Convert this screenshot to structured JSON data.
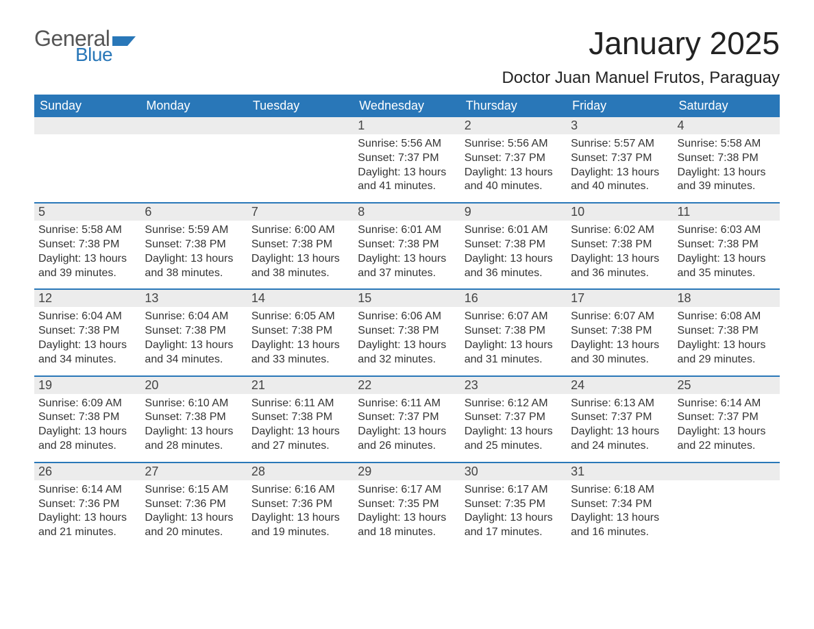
{
  "logo": {
    "general": "General",
    "blue": "Blue"
  },
  "title": "January 2025",
  "location": "Doctor Juan Manuel Frutos, Paraguay",
  "colors": {
    "header_bg": "#2977b8",
    "header_text": "#ffffff",
    "row_divider": "#2977b8",
    "daynum_bg": "#ececec",
    "page_bg": "#ffffff",
    "body_text": "#333333",
    "logo_general": "#555555",
    "logo_blue": "#2977b8"
  },
  "typography": {
    "title_fontsize": 46,
    "location_fontsize": 24,
    "dayheader_fontsize": 18,
    "daynum_fontsize": 18,
    "body_fontsize": 16
  },
  "day_headers": [
    "Sunday",
    "Monday",
    "Tuesday",
    "Wednesday",
    "Thursday",
    "Friday",
    "Saturday"
  ],
  "weeks": [
    [
      {
        "empty": true
      },
      {
        "empty": true
      },
      {
        "empty": true
      },
      {
        "num": "1",
        "sunrise": "Sunrise: 5:56 AM",
        "sunset": "Sunset: 7:37 PM",
        "daylight": "Daylight: 13 hours and 41 minutes."
      },
      {
        "num": "2",
        "sunrise": "Sunrise: 5:56 AM",
        "sunset": "Sunset: 7:37 PM",
        "daylight": "Daylight: 13 hours and 40 minutes."
      },
      {
        "num": "3",
        "sunrise": "Sunrise: 5:57 AM",
        "sunset": "Sunset: 7:37 PM",
        "daylight": "Daylight: 13 hours and 40 minutes."
      },
      {
        "num": "4",
        "sunrise": "Sunrise: 5:58 AM",
        "sunset": "Sunset: 7:38 PM",
        "daylight": "Daylight: 13 hours and 39 minutes."
      }
    ],
    [
      {
        "num": "5",
        "sunrise": "Sunrise: 5:58 AM",
        "sunset": "Sunset: 7:38 PM",
        "daylight": "Daylight: 13 hours and 39 minutes."
      },
      {
        "num": "6",
        "sunrise": "Sunrise: 5:59 AM",
        "sunset": "Sunset: 7:38 PM",
        "daylight": "Daylight: 13 hours and 38 minutes."
      },
      {
        "num": "7",
        "sunrise": "Sunrise: 6:00 AM",
        "sunset": "Sunset: 7:38 PM",
        "daylight": "Daylight: 13 hours and 38 minutes."
      },
      {
        "num": "8",
        "sunrise": "Sunrise: 6:01 AM",
        "sunset": "Sunset: 7:38 PM",
        "daylight": "Daylight: 13 hours and 37 minutes."
      },
      {
        "num": "9",
        "sunrise": "Sunrise: 6:01 AM",
        "sunset": "Sunset: 7:38 PM",
        "daylight": "Daylight: 13 hours and 36 minutes."
      },
      {
        "num": "10",
        "sunrise": "Sunrise: 6:02 AM",
        "sunset": "Sunset: 7:38 PM",
        "daylight": "Daylight: 13 hours and 36 minutes."
      },
      {
        "num": "11",
        "sunrise": "Sunrise: 6:03 AM",
        "sunset": "Sunset: 7:38 PM",
        "daylight": "Daylight: 13 hours and 35 minutes."
      }
    ],
    [
      {
        "num": "12",
        "sunrise": "Sunrise: 6:04 AM",
        "sunset": "Sunset: 7:38 PM",
        "daylight": "Daylight: 13 hours and 34 minutes."
      },
      {
        "num": "13",
        "sunrise": "Sunrise: 6:04 AM",
        "sunset": "Sunset: 7:38 PM",
        "daylight": "Daylight: 13 hours and 34 minutes."
      },
      {
        "num": "14",
        "sunrise": "Sunrise: 6:05 AM",
        "sunset": "Sunset: 7:38 PM",
        "daylight": "Daylight: 13 hours and 33 minutes."
      },
      {
        "num": "15",
        "sunrise": "Sunrise: 6:06 AM",
        "sunset": "Sunset: 7:38 PM",
        "daylight": "Daylight: 13 hours and 32 minutes."
      },
      {
        "num": "16",
        "sunrise": "Sunrise: 6:07 AM",
        "sunset": "Sunset: 7:38 PM",
        "daylight": "Daylight: 13 hours and 31 minutes."
      },
      {
        "num": "17",
        "sunrise": "Sunrise: 6:07 AM",
        "sunset": "Sunset: 7:38 PM",
        "daylight": "Daylight: 13 hours and 30 minutes."
      },
      {
        "num": "18",
        "sunrise": "Sunrise: 6:08 AM",
        "sunset": "Sunset: 7:38 PM",
        "daylight": "Daylight: 13 hours and 29 minutes."
      }
    ],
    [
      {
        "num": "19",
        "sunrise": "Sunrise: 6:09 AM",
        "sunset": "Sunset: 7:38 PM",
        "daylight": "Daylight: 13 hours and 28 minutes."
      },
      {
        "num": "20",
        "sunrise": "Sunrise: 6:10 AM",
        "sunset": "Sunset: 7:38 PM",
        "daylight": "Daylight: 13 hours and 28 minutes."
      },
      {
        "num": "21",
        "sunrise": "Sunrise: 6:11 AM",
        "sunset": "Sunset: 7:38 PM",
        "daylight": "Daylight: 13 hours and 27 minutes."
      },
      {
        "num": "22",
        "sunrise": "Sunrise: 6:11 AM",
        "sunset": "Sunset: 7:37 PM",
        "daylight": "Daylight: 13 hours and 26 minutes."
      },
      {
        "num": "23",
        "sunrise": "Sunrise: 6:12 AM",
        "sunset": "Sunset: 7:37 PM",
        "daylight": "Daylight: 13 hours and 25 minutes."
      },
      {
        "num": "24",
        "sunrise": "Sunrise: 6:13 AM",
        "sunset": "Sunset: 7:37 PM",
        "daylight": "Daylight: 13 hours and 24 minutes."
      },
      {
        "num": "25",
        "sunrise": "Sunrise: 6:14 AM",
        "sunset": "Sunset: 7:37 PM",
        "daylight": "Daylight: 13 hours and 22 minutes."
      }
    ],
    [
      {
        "num": "26",
        "sunrise": "Sunrise: 6:14 AM",
        "sunset": "Sunset: 7:36 PM",
        "daylight": "Daylight: 13 hours and 21 minutes."
      },
      {
        "num": "27",
        "sunrise": "Sunrise: 6:15 AM",
        "sunset": "Sunset: 7:36 PM",
        "daylight": "Daylight: 13 hours and 20 minutes."
      },
      {
        "num": "28",
        "sunrise": "Sunrise: 6:16 AM",
        "sunset": "Sunset: 7:36 PM",
        "daylight": "Daylight: 13 hours and 19 minutes."
      },
      {
        "num": "29",
        "sunrise": "Sunrise: 6:17 AM",
        "sunset": "Sunset: 7:35 PM",
        "daylight": "Daylight: 13 hours and 18 minutes."
      },
      {
        "num": "30",
        "sunrise": "Sunrise: 6:17 AM",
        "sunset": "Sunset: 7:35 PM",
        "daylight": "Daylight: 13 hours and 17 minutes."
      },
      {
        "num": "31",
        "sunrise": "Sunrise: 6:18 AM",
        "sunset": "Sunset: 7:34 PM",
        "daylight": "Daylight: 13 hours and 16 minutes."
      },
      {
        "empty": true
      }
    ]
  ]
}
